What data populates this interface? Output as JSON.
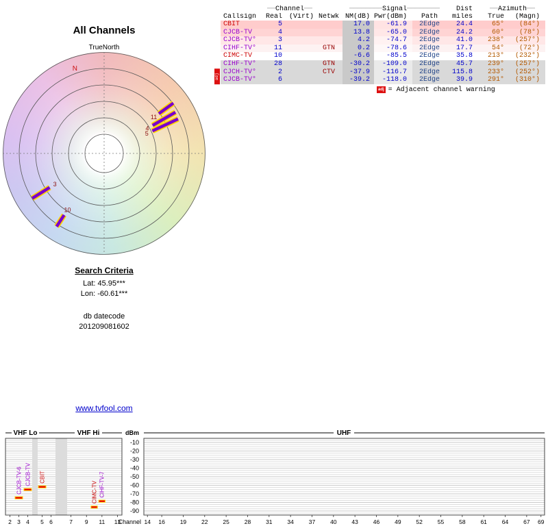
{
  "palette": {
    "value_blue": "#0000cc",
    "network_red": "#990000",
    "path_blue": "#224488",
    "azimuth_orange": "#b35900",
    "nm_column_gray": "#c9c9c9",
    "warning_red": "#dd1111",
    "marker_purple": "#7a00cc",
    "marker_outline_yellow": "#ffd400",
    "signal_marker_red": "#e60000",
    "link_blue": "#0000cc"
  },
  "radar": {
    "title": "All Channels",
    "north_label": "TrueNorth",
    "compass_n": "N"
  },
  "search": {
    "heading": "Search Criteria",
    "lat": "Lat: 45.95***",
    "lon": "Lon: -60.61***",
    "datecode_label": "db datecode",
    "datecode": "201209081602"
  },
  "link": {
    "text": "www.tvfool.com"
  },
  "table": {
    "group_headers": {
      "dash_s": "──",
      "dash_l": "────────",
      "channel": "Channel",
      "signal": "Signal",
      "dist": "Dist",
      "azimuth": "Azimuth"
    },
    "columns": [
      "Callsign",
      "Real",
      "(Virt)",
      "Netwk",
      "NM(dB)",
      "Pwr(dBm)",
      "Path",
      "miles",
      "True",
      "(Magn)"
    ],
    "rows": [
      {
        "callsign": "CBIT",
        "callsign_color": "#cc0000",
        "real": "5",
        "virt": "",
        "netwk": "",
        "nm": "17.0",
        "pwr": "-61.9",
        "path": "2Edge",
        "miles": "24.4",
        "true_az": "65°",
        "magn_az": "(84°)",
        "bg": "#ffcccc",
        "adj": false
      },
      {
        "callsign": "CJCB-TV",
        "callsign_color": "#9900cc",
        "real": "4",
        "virt": "",
        "netwk": "",
        "nm": "13.8",
        "pwr": "-65.0",
        "path": "2Edge",
        "miles": "24.2",
        "true_az": "60°",
        "magn_az": "(78°)",
        "bg": "#ffd4d4",
        "adj": false
      },
      {
        "callsign": "CJCB-TV°",
        "callsign_color": "#9900cc",
        "real": "3",
        "virt": "",
        "netwk": "",
        "nm": "4.2",
        "pwr": "-74.7",
        "path": "2Edge",
        "miles": "41.0",
        "true_az": "238°",
        "magn_az": "(257°)",
        "bg": "#ffe7e7",
        "adj": false
      },
      {
        "callsign": "CIHF-TV°",
        "callsign_color": "#9900cc",
        "real": "11",
        "virt": "",
        "netwk": "GTN",
        "nm": "0.2",
        "pwr": "-78.6",
        "path": "2Edge",
        "miles": "17.7",
        "true_az": "54°",
        "magn_az": "(72°)",
        "bg": "#fdf2f2",
        "adj": false
      },
      {
        "callsign": "CIMC-TV",
        "callsign_color": "#cc0000",
        "real": "10",
        "virt": "",
        "netwk": "",
        "nm": "-6.6",
        "pwr": "-85.5",
        "path": "2Edge",
        "miles": "35.8",
        "true_az": "213°",
        "magn_az": "(232°)",
        "bg": "#ffffff",
        "adj": false
      },
      {
        "callsign": "CIHF-TV°",
        "callsign_color": "#9900cc",
        "real": "28",
        "virt": "",
        "netwk": "GTN",
        "nm": "-30.2",
        "pwr": "-109.0",
        "path": "2Edge",
        "miles": "45.7",
        "true_az": "239°",
        "magn_az": "(257°)",
        "bg": "#d9d9d9",
        "adj": false
      },
      {
        "callsign": "CJCH-TV°",
        "callsign_color": "#9900cc",
        "real": "2",
        "virt": "",
        "netwk": "CTV",
        "nm": "-37.9",
        "pwr": "-116.7",
        "path": "2Edge",
        "miles": "115.8",
        "true_az": "233°",
        "magn_az": "(252°)",
        "bg": "#d9d9d9",
        "adj": true
      },
      {
        "callsign": "CJCB-TV°",
        "callsign_color": "#9900cc",
        "real": "6",
        "virt": "",
        "netwk": "",
        "nm": "-39.2",
        "pwr": "-118.0",
        "path": "2Edge",
        "miles": "39.9",
        "true_az": "291°",
        "magn_az": "(310°)",
        "bg": "#d9d9d9",
        "adj": true
      }
    ],
    "adj_badge_text": "adj",
    "legend": {
      "badge": "adj",
      "text": "= Adjacent channel warning"
    }
  },
  "chart_data": [
    {
      "type": "scatter",
      "subtype": "polar-azimuth-radar",
      "title": "All Channels",
      "north_label": "TrueNorth",
      "points": [
        {
          "channel": "5",
          "azimuth_deg": 65,
          "nm_db": 17.0
        },
        {
          "channel": "4",
          "azimuth_deg": 60,
          "nm_db": 13.8
        },
        {
          "channel": "11",
          "azimuth_deg": 54,
          "nm_db": 0.2
        },
        {
          "channel": "3",
          "azimuth_deg": 238,
          "nm_db": 4.2
        },
        {
          "channel": "10",
          "azimuth_deg": 213,
          "nm_db": -6.6
        }
      ]
    },
    {
      "type": "scatter",
      "subtype": "band-power-chart",
      "xlabel": "Channel",
      "ylabel": "dBm",
      "ylim": [
        -95,
        -5
      ],
      "band_labels": [
        "VHF Lo",
        "VHF Hi",
        "UHF"
      ],
      "yticks": [
        -10,
        -20,
        -30,
        -40,
        -50,
        -60,
        -70,
        -80,
        -90
      ],
      "vhf_ticks": [
        2,
        3,
        4,
        5,
        6,
        7,
        9,
        11,
        13
      ],
      "uhf_ticks": [
        14,
        16,
        19,
        22,
        25,
        28,
        31,
        34,
        37,
        40,
        43,
        46,
        49,
        52,
        55,
        58,
        61,
        64,
        67,
        69
      ],
      "points": [
        {
          "callsign": "CJCB-TV-6",
          "channel": 3,
          "power_dbm": -74.7,
          "color": "#9900cc"
        },
        {
          "callsign": "CJCB-TV",
          "channel": 4,
          "power_dbm": -65.0,
          "color": "#9900cc"
        },
        {
          "callsign": "CBIT",
          "channel": 5,
          "power_dbm": -61.9,
          "color": "#cc0000"
        },
        {
          "callsign": "CIMC-TV",
          "channel": 10,
          "power_dbm": -85.5,
          "color": "#cc0000"
        },
        {
          "callsign": "CIHF-TV-7",
          "channel": 11,
          "power_dbm": -78.6,
          "color": "#9900cc"
        }
      ]
    }
  ]
}
